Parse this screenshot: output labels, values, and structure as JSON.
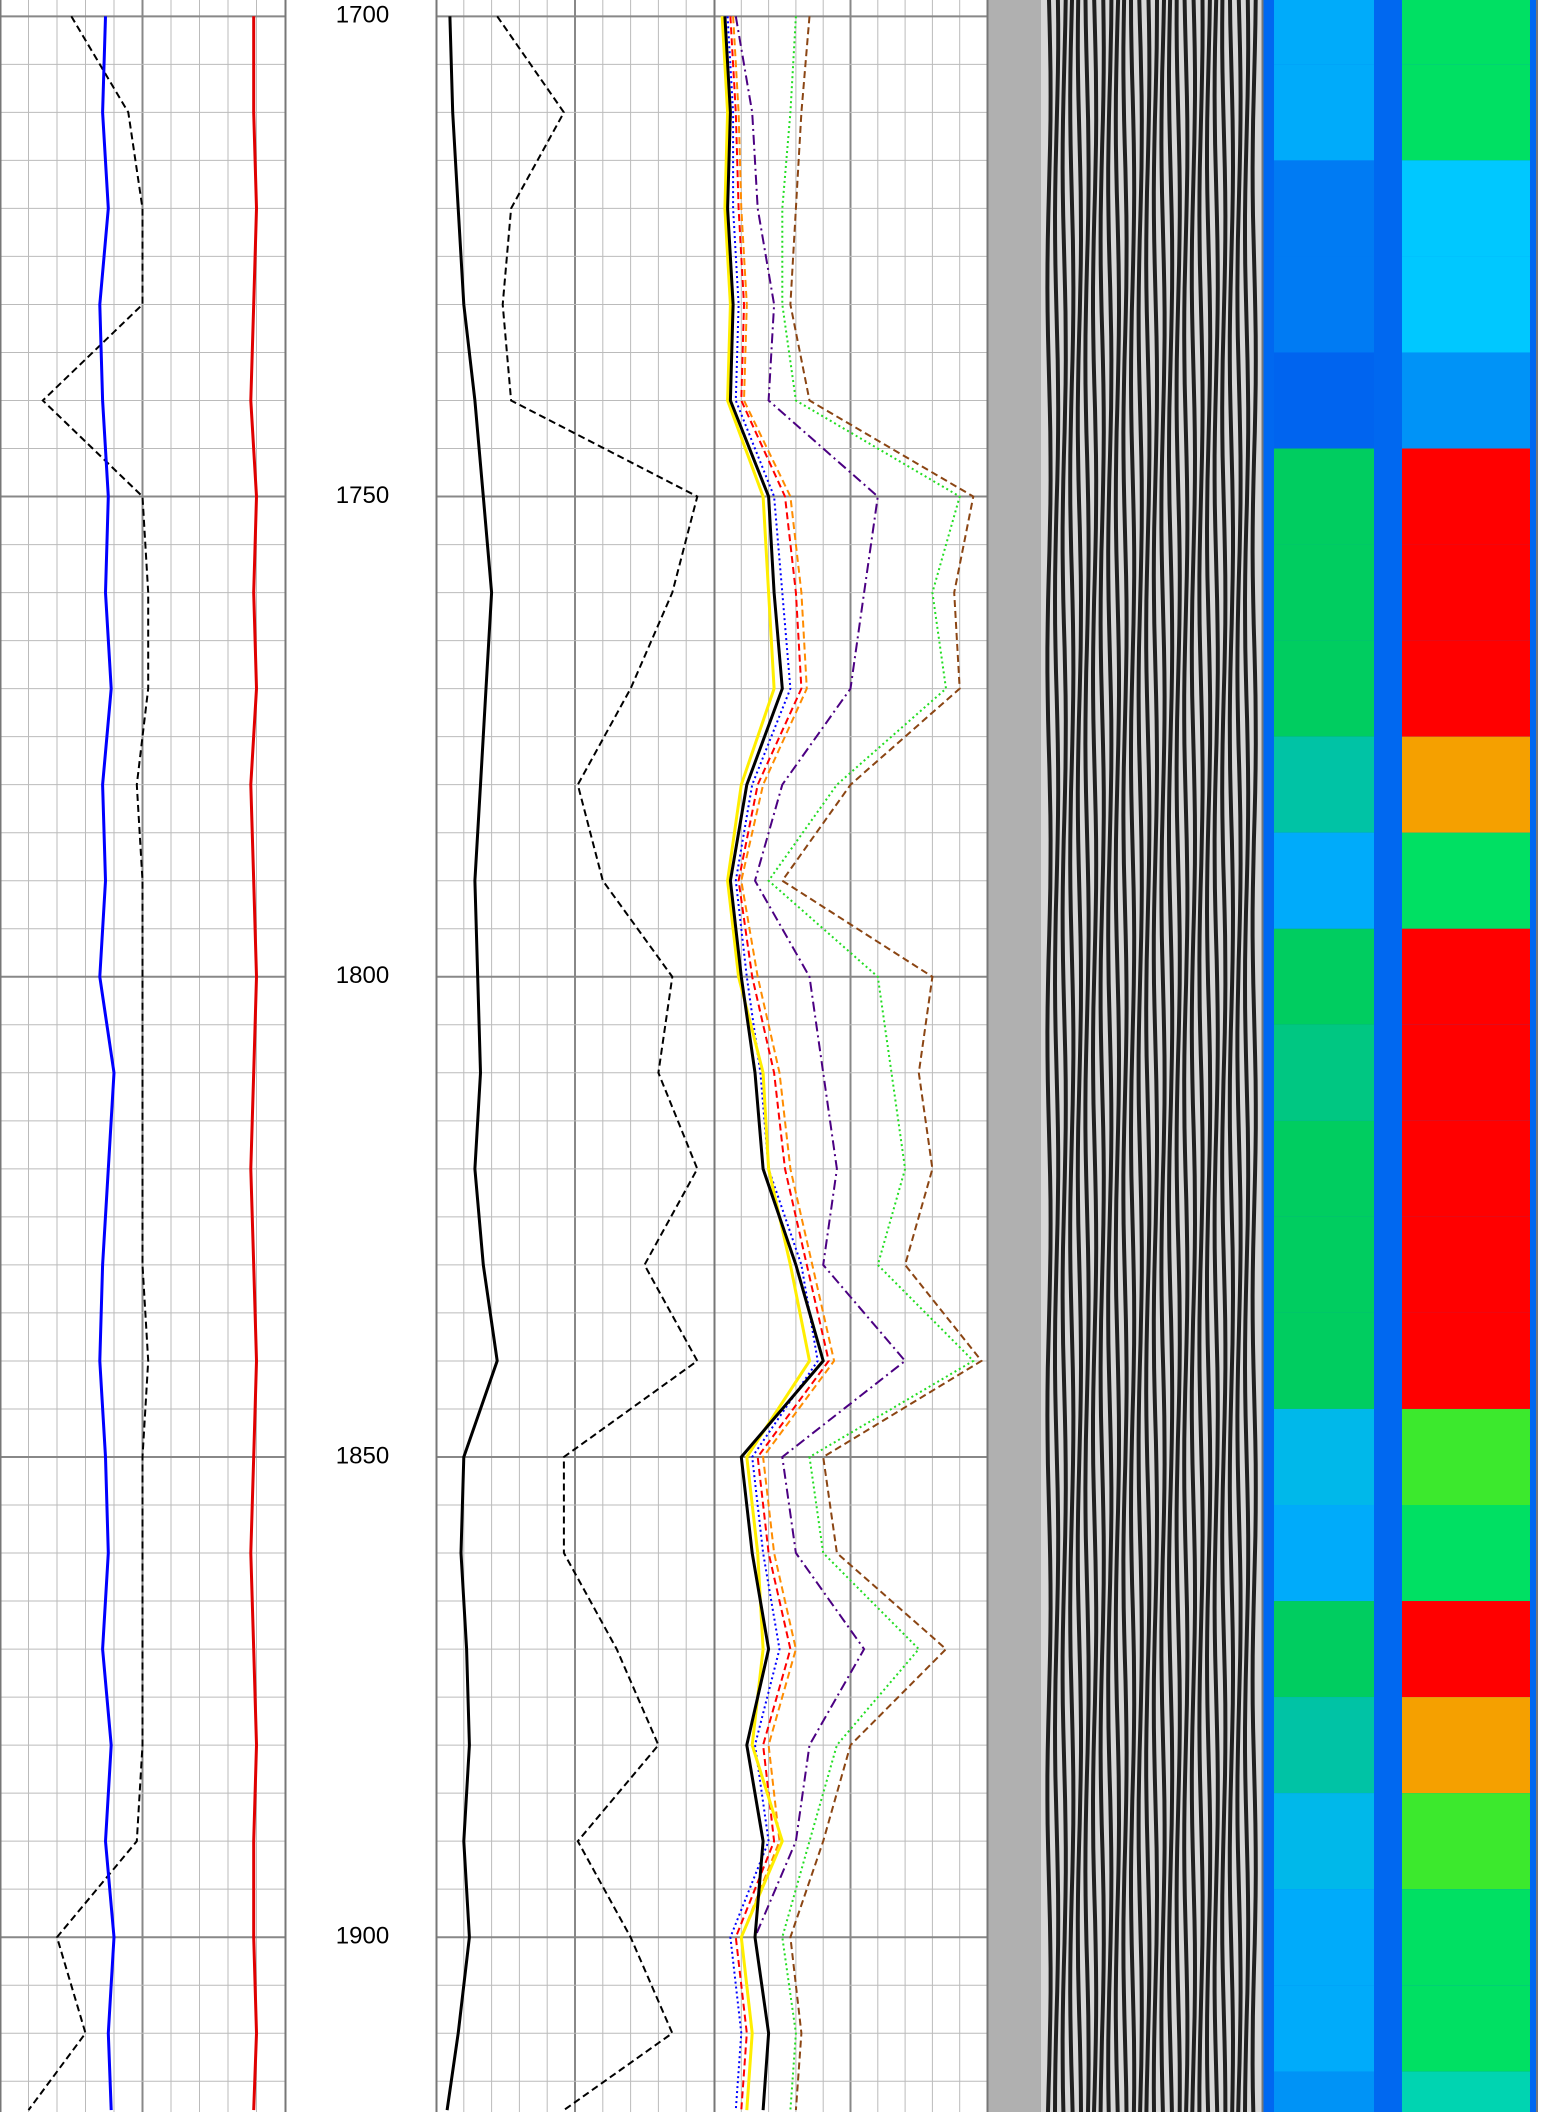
{
  "chart_data": {
    "type": "log",
    "ylim": [
      1698.3,
      1918.2
    ],
    "yticks": [
      1700,
      1750,
      1800,
      1850,
      1900
    ],
    "minor_yticks": [
      1705,
      1710,
      1715,
      1720,
      1725,
      1730,
      1735,
      1740,
      1745,
      1755,
      1760,
      1765,
      1770,
      1775,
      1780,
      1785,
      1790,
      1795,
      1805,
      1810,
      1815,
      1820,
      1825,
      1830,
      1835,
      1840,
      1845,
      1855,
      1860,
      1865,
      1870,
      1875,
      1880,
      1885,
      1890,
      1895,
      1905,
      1910,
      1915
    ],
    "grid": true,
    "depth": [
      1700,
      1710,
      1720,
      1730,
      1740,
      1750,
      1760,
      1770,
      1780,
      1790,
      1800,
      1810,
      1820,
      1830,
      1840,
      1850,
      1860,
      1870,
      1880,
      1890,
      1900,
      1910,
      1918
    ],
    "tracks": [
      {
        "type": "line",
        "xlim": [
          0,
          100
        ],
        "series": [
          {
            "color": "#000000",
            "dash": "dashed",
            "values": [
              25,
              45,
              50,
              50,
              15,
              50,
              52,
              52,
              48,
              50,
              50,
              50,
              50,
              50,
              52,
              50,
              50,
              50,
              50,
              48,
              20,
              30,
              10
            ]
          },
          {
            "color": "#0000ff",
            "dash": "solid",
            "values": [
              37,
              36,
              38,
              35,
              36,
              38,
              37,
              39,
              36,
              37,
              35,
              40,
              38,
              36,
              35,
              37,
              38,
              36,
              39,
              37,
              40,
              38,
              39
            ]
          },
          {
            "color": "#e00000",
            "dash": "solid",
            "values": [
              89,
              89,
              90,
              89,
              88,
              90,
              89,
              90,
              88,
              89,
              90,
              89,
              88,
              89,
              90,
              89,
              88,
              89,
              90,
              89,
              89,
              90,
              89
            ]
          }
        ]
      },
      {
        "type": "depth"
      },
      {
        "type": "line",
        "xlim": [
          0,
          100
        ],
        "series": [
          {
            "color": "#000000",
            "dash": "solid",
            "values": [
              5,
              6,
              8,
              10,
              14,
              17,
              20,
              18,
              16,
              14,
              15,
              16,
              14,
              17,
              22,
              10,
              9,
              11,
              12,
              10,
              12,
              8,
              4
            ]
          },
          {
            "color": "#000000",
            "dash": "dashed",
            "values": [
              22,
              46,
              27,
              24,
              27,
              94,
              85,
              70,
              51,
              60,
              85,
              80,
              94,
              75,
              94,
              46,
              46,
              65,
              80,
              51,
              70,
              85,
              46
            ]
          }
        ]
      },
      {
        "type": "line",
        "xlim": [
          0,
          100
        ],
        "series": [
          {
            "color": "#8b4513",
            "dash": "dashed",
            "values": [
              35,
              32,
              30,
              28,
              35,
              95,
              88,
              90,
              50,
              25,
              80,
              75,
              80,
              70,
              98,
              40,
              45,
              85,
              50,
              40,
              28,
              32,
              30
            ]
          },
          {
            "color": "#22dd22",
            "dash": "dotted",
            "values": [
              30,
              28,
              25,
              25,
              30,
              90,
              80,
              85,
              45,
              20,
              60,
              65,
              70,
              60,
              95,
              35,
              40,
              75,
              45,
              35,
              25,
              30,
              28
            ]
          },
          {
            "color": "#4b0082",
            "dash": "dashdot",
            "values": [
              8,
              14,
              16,
              22,
              20,
              60,
              55,
              50,
              25,
              15,
              35,
              40,
              45,
              40,
              70,
              25,
              30,
              55,
              35,
              30,
              15,
              20,
              18
            ]
          },
          {
            "color": "#ff8c00",
            "dash": "dashed",
            "values": [
              7,
              9,
              10,
              12,
              11,
              28,
              32,
              34,
              18,
              10,
              16,
              24,
              28,
              36,
              44,
              18,
              22,
              30,
              20,
              24,
              10,
              14,
              12
            ]
          },
          {
            "color": "#ff0000",
            "dash": "dashed",
            "values": [
              6,
              8,
              9,
              11,
              10,
              26,
              30,
              32,
              16,
              9,
              14,
              22,
              26,
              34,
              42,
              16,
              20,
              28,
              18,
              22,
              8,
              12,
              10
            ]
          },
          {
            "color": "#0000ff",
            "dash": "dotted",
            "values": [
              5,
              7,
              7,
              9,
              8,
              22,
              25,
              28,
              14,
              8,
              12,
              17,
              20,
              32,
              38,
              14,
              18,
              24,
              15,
              20,
              6,
              10,
              8
            ]
          },
          {
            "color": "#ffee00",
            "dash": "solid",
            "values": [
              3,
              5,
              4,
              6,
              5,
              18,
              20,
              22,
              10,
              5,
              9,
              18,
              20,
              28,
              35,
              12,
              16,
              18,
              14,
              25,
              10,
              14,
              12
            ]
          },
          {
            "color": "#000000",
            "dash": "solid",
            "values": [
              4,
              6,
              5,
              7,
              6,
              20,
              22,
              25,
              12,
              6,
              10,
              15,
              18,
              30,
              40,
              10,
              14,
              20,
              12,
              18,
              15,
              20,
              18
            ]
          }
        ]
      },
      {
        "type": "wiggle"
      },
      {
        "type": "heatmap",
        "xlim": [
          0,
          100
        ],
        "values": [
          50,
          50,
          30,
          30,
          20,
          100,
          100,
          100,
          80,
          50,
          100,
          90,
          100,
          100,
          100,
          60,
          50,
          100,
          80,
          60,
          50,
          50,
          40
        ]
      }
    ]
  }
}
